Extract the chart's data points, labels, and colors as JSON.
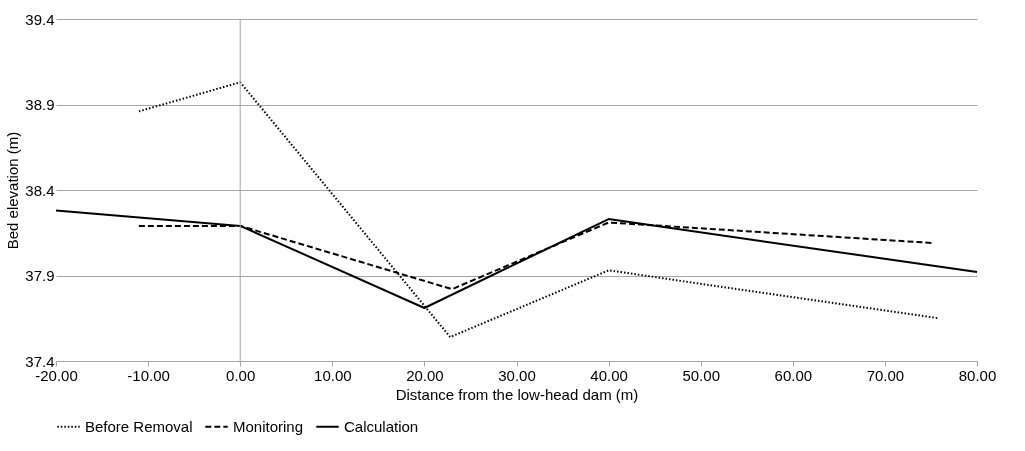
{
  "chart_data": {
    "type": "line",
    "xlabel": "Distance from the low-head dam (m)",
    "ylabel": "Bed elevation (m)",
    "xlim": [
      -20,
      80
    ],
    "xticks": [
      {
        "value": -20,
        "label": "-20.00"
      },
      {
        "value": -10,
        "label": "-10.00"
      },
      {
        "value": 0,
        "label": "0.00"
      },
      {
        "value": 10,
        "label": "10.00"
      },
      {
        "value": 20,
        "label": "20.00"
      },
      {
        "value": 30,
        "label": "30.00"
      },
      {
        "value": 40,
        "label": "40.00"
      },
      {
        "value": 50,
        "label": "50.00"
      },
      {
        "value": 60,
        "label": "60.00"
      },
      {
        "value": 70,
        "label": "70.00"
      },
      {
        "value": 80,
        "label": "80.00"
      }
    ],
    "ylim": [
      37.4,
      39.4
    ],
    "yticks": [
      37.4,
      37.9,
      38.4,
      38.9,
      39.4
    ],
    "grid": "y",
    "legend": "bottom",
    "marker": "none",
    "ref_lines": [
      {
        "axis": "x",
        "value": 0,
        "color": "#a6a6a6"
      }
    ],
    "series": [
      {
        "name": "Before Removal",
        "color": "#000000",
        "line_style": "dotted",
        "x": [
          -11,
          0,
          22.8,
          40,
          75.8
        ],
        "values": [
          38.86,
          39.03,
          37.54,
          37.93,
          37.65
        ]
      },
      {
        "name": "Monitoring",
        "color": "#000000",
        "line_style": "dashed",
        "x": [
          -11,
          0,
          23,
          40,
          75.2
        ],
        "values": [
          38.19,
          38.19,
          37.82,
          38.21,
          38.09
        ]
      },
      {
        "name": "Calculation",
        "color": "#000000",
        "line_style": "solid",
        "x": [
          -20,
          0,
          20,
          40,
          80
        ],
        "values": [
          38.28,
          38.19,
          37.71,
          38.23,
          37.92
        ]
      }
    ]
  }
}
